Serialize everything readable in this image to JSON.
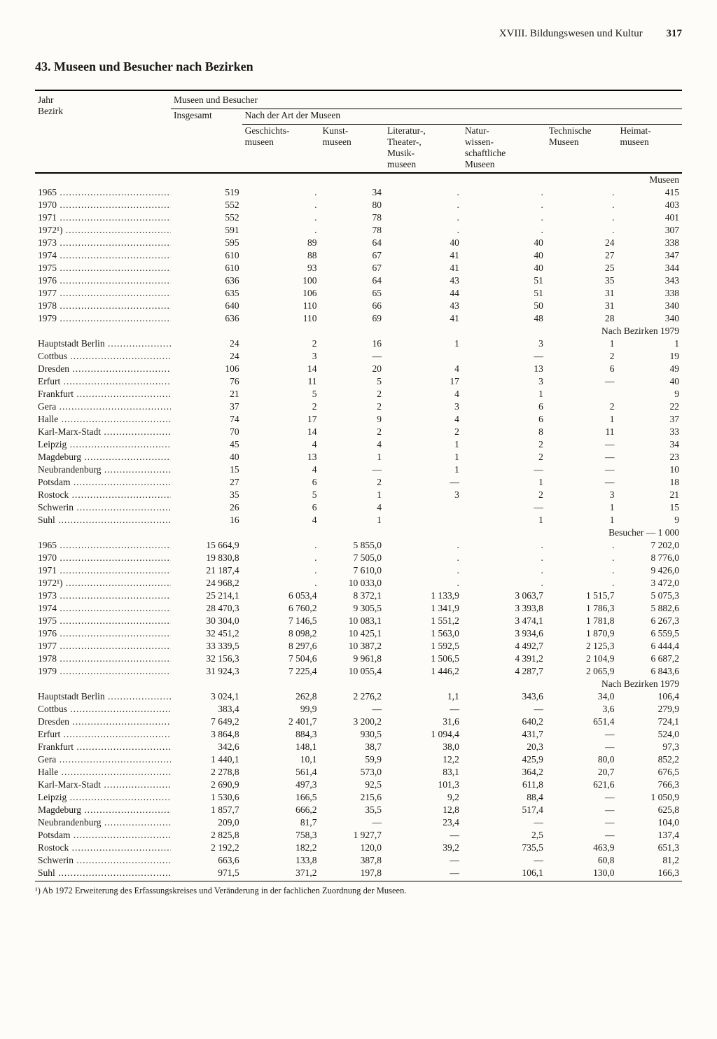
{
  "header": {
    "chapter": "XVIII. Bildungswesen und Kultur",
    "page": "317"
  },
  "title": "43. Museen und Besucher nach Bezirken",
  "col_left": {
    "l1": "Jahr",
    "l2": "Bezirk"
  },
  "col_group": "Museen und Besucher",
  "col_total": "Insgesamt",
  "col_sub": "Nach der Art der Museen",
  "cols": {
    "c1": "Geschichts-\nmuseen",
    "c2": "Kunst-\nmuseen",
    "c3": "Literatur-,\nTheater-,\nMusik-\nmuseen",
    "c4": "Natur-\nwissen-\nschaftliche\nMuseen",
    "c5": "Technische\nMuseen",
    "c6": "Heimat-\nmuseen"
  },
  "sections": {
    "s1": "Museen",
    "s2": "Nach Bezirken 1979",
    "s3": "Besucher — 1 000",
    "s4": "Nach Bezirken 1979"
  },
  "museen_years": [
    {
      "y": "1965",
      "t": "519",
      "c1": ".",
      "c2": "34",
      "c3": ".",
      "c4": ".",
      "c5": ".",
      "c6": "415"
    },
    {
      "y": "1970",
      "t": "552",
      "c1": ".",
      "c2": "80",
      "c3": ".",
      "c4": ".",
      "c5": ".",
      "c6": "403"
    },
    {
      "y": "1971",
      "t": "552",
      "c1": ".",
      "c2": "78",
      "c3": ".",
      "c4": ".",
      "c5": ".",
      "c6": "401"
    },
    {
      "y": "1972¹)",
      "t": "591",
      "c1": ".",
      "c2": "78",
      "c3": ".",
      "c4": ".",
      "c5": ".",
      "c6": "307"
    },
    {
      "y": "1973",
      "t": "595",
      "c1": "89",
      "c2": "64",
      "c3": "40",
      "c4": "40",
      "c5": "24",
      "c6": "338"
    },
    {
      "y": "1974",
      "t": "610",
      "c1": "88",
      "c2": "67",
      "c3": "41",
      "c4": "40",
      "c5": "27",
      "c6": "347"
    },
    {
      "y": "1975",
      "t": "610",
      "c1": "93",
      "c2": "67",
      "c3": "41",
      "c4": "40",
      "c5": "25",
      "c6": "344"
    },
    {
      "y": "1976",
      "t": "636",
      "c1": "100",
      "c2": "64",
      "c3": "43",
      "c4": "51",
      "c5": "35",
      "c6": "343"
    },
    {
      "y": "1977",
      "t": "635",
      "c1": "106",
      "c2": "65",
      "c3": "44",
      "c4": "51",
      "c5": "31",
      "c6": "338"
    },
    {
      "y": "1978",
      "t": "640",
      "c1": "110",
      "c2": "66",
      "c3": "43",
      "c4": "50",
      "c5": "31",
      "c6": "340"
    },
    {
      "y": "1979",
      "t": "636",
      "c1": "110",
      "c2": "69",
      "c3": "41",
      "c4": "48",
      "c5": "28",
      "c6": "340"
    }
  ],
  "museen_bezirke": [
    {
      "y": "Hauptstadt Berlin",
      "t": "24",
      "c1": "2",
      "c2": "16",
      "c3": "1",
      "c4": "3",
      "c5": "1",
      "c6": "1"
    },
    {
      "y": "Cottbus",
      "t": "24",
      "c1": "3",
      "c2": "—",
      "c3": "",
      "c4": "—",
      "c5": "2",
      "c6": "19"
    },
    {
      "y": "Dresden",
      "t": "106",
      "c1": "14",
      "c2": "20",
      "c3": "4",
      "c4": "13",
      "c5": "6",
      "c6": "49"
    },
    {
      "y": "Erfurt",
      "t": "76",
      "c1": "11",
      "c2": "5",
      "c3": "17",
      "c4": "3",
      "c5": "—",
      "c6": "40"
    },
    {
      "y": "Frankfurt",
      "t": "21",
      "c1": "5",
      "c2": "2",
      "c3": "4",
      "c4": "1",
      "c5": "",
      "c6": "9"
    },
    {
      "y": "Gera",
      "t": "37",
      "c1": "2",
      "c2": "2",
      "c3": "3",
      "c4": "6",
      "c5": "2",
      "c6": "22"
    },
    {
      "y": "Halle",
      "t": "74",
      "c1": "17",
      "c2": "9",
      "c3": "4",
      "c4": "6",
      "c5": "1",
      "c6": "37"
    },
    {
      "y": "Karl-Marx-Stadt",
      "t": "70",
      "c1": "14",
      "c2": "2",
      "c3": "2",
      "c4": "8",
      "c5": "11",
      "c6": "33"
    },
    {
      "y": "Leipzig",
      "t": "45",
      "c1": "4",
      "c2": "4",
      "c3": "1",
      "c4": "2",
      "c5": "—",
      "c6": "34"
    },
    {
      "y": "Magdeburg",
      "t": "40",
      "c1": "13",
      "c2": "1",
      "c3": "1",
      "c4": "2",
      "c5": "—",
      "c6": "23"
    },
    {
      "y": "Neubrandenburg",
      "t": "15",
      "c1": "4",
      "c2": "—",
      "c3": "1",
      "c4": "—",
      "c5": "—",
      "c6": "10"
    },
    {
      "y": "Potsdam",
      "t": "27",
      "c1": "6",
      "c2": "2",
      "c3": "—",
      "c4": "1",
      "c5": "—",
      "c6": "18"
    },
    {
      "y": "Rostock",
      "t": "35",
      "c1": "5",
      "c2": "1",
      "c3": "3",
      "c4": "2",
      "c5": "3",
      "c6": "21"
    },
    {
      "y": "Schwerin",
      "t": "26",
      "c1": "6",
      "c2": "4",
      "c3": "",
      "c4": "—",
      "c5": "1",
      "c6": "15"
    },
    {
      "y": "Suhl",
      "t": "16",
      "c1": "4",
      "c2": "1",
      "c3": "",
      "c4": "1",
      "c5": "1",
      "c6": "9"
    }
  ],
  "besucher_years": [
    {
      "y": "1965",
      "t": "15 664,9",
      "c1": ".",
      "c2": "5 855,0",
      "c3": ".",
      "c4": ".",
      "c5": ".",
      "c6": "7 202,0"
    },
    {
      "y": "1970",
      "t": "19 830,8",
      "c1": ".",
      "c2": "7 505,0",
      "c3": ".",
      "c4": ".",
      "c5": ".",
      "c6": "8 776,0"
    },
    {
      "y": "1971",
      "t": "21 187,4",
      "c1": ".",
      "c2": "7 610,0",
      "c3": ".",
      "c4": ".",
      "c5": ".",
      "c6": "9 426,0"
    },
    {
      "y": "1972¹)",
      "t": "24 968,2",
      "c1": ".",
      "c2": "10 033,0",
      "c3": ".",
      "c4": ".",
      "c5": ".",
      "c6": "3 472,0"
    },
    {
      "y": "1973",
      "t": "25 214,1",
      "c1": "6 053,4",
      "c2": "8 372,1",
      "c3": "1 133,9",
      "c4": "3 063,7",
      "c5": "1 515,7",
      "c6": "5 075,3"
    },
    {
      "y": "1974",
      "t": "28 470,3",
      "c1": "6 760,2",
      "c2": "9 305,5",
      "c3": "1 341,9",
      "c4": "3 393,8",
      "c5": "1 786,3",
      "c6": "5 882,6"
    },
    {
      "y": "1975",
      "t": "30 304,0",
      "c1": "7 146,5",
      "c2": "10 083,1",
      "c3": "1 551,2",
      "c4": "3 474,1",
      "c5": "1 781,8",
      "c6": "6 267,3"
    },
    {
      "y": "1976",
      "t": "32 451,2",
      "c1": "8 098,2",
      "c2": "10 425,1",
      "c3": "1 563,0",
      "c4": "3 934,6",
      "c5": "1 870,9",
      "c6": "6 559,5"
    },
    {
      "y": "1977",
      "t": "33 339,5",
      "c1": "8 297,6",
      "c2": "10 387,2",
      "c3": "1 592,5",
      "c4": "4 492,7",
      "c5": "2 125,3",
      "c6": "6 444,4"
    },
    {
      "y": "1978",
      "t": "32 156,3",
      "c1": "7 504,6",
      "c2": "9 961,8",
      "c3": "1 506,5",
      "c4": "4 391,2",
      "c5": "2 104,9",
      "c6": "6 687,2"
    },
    {
      "y": "1979",
      "t": "31 924,3",
      "c1": "7 225,4",
      "c2": "10 055,4",
      "c3": "1 446,2",
      "c4": "4 287,7",
      "c5": "2 065,9",
      "c6": "6 843,6"
    }
  ],
  "besucher_bezirke": [
    {
      "y": "Hauptstadt Berlin",
      "t": "3 024,1",
      "c1": "262,8",
      "c2": "2 276,2",
      "c3": "1,1",
      "c4": "343,6",
      "c5": "34,0",
      "c6": "106,4"
    },
    {
      "y": "Cottbus",
      "t": "383,4",
      "c1": "99,9",
      "c2": "—",
      "c3": "—",
      "c4": "—",
      "c5": "3,6",
      "c6": "279,9"
    },
    {
      "y": "Dresden",
      "t": "7 649,2",
      "c1": "2 401,7",
      "c2": "3 200,2",
      "c3": "31,6",
      "c4": "640,2",
      "c5": "651,4",
      "c6": "724,1"
    },
    {
      "y": "Erfurt",
      "t": "3 864,8",
      "c1": "884,3",
      "c2": "930,5",
      "c3": "1 094,4",
      "c4": "431,7",
      "c5": "—",
      "c6": "524,0"
    },
    {
      "y": "Frankfurt",
      "t": "342,6",
      "c1": "148,1",
      "c2": "38,7",
      "c3": "38,0",
      "c4": "20,3",
      "c5": "—",
      "c6": "97,3"
    },
    {
      "y": "Gera",
      "t": "1 440,1",
      "c1": "10,1",
      "c2": "59,9",
      "c3": "12,2",
      "c4": "425,9",
      "c5": "80,0",
      "c6": "852,2"
    },
    {
      "y": "Halle",
      "t": "2 278,8",
      "c1": "561,4",
      "c2": "573,0",
      "c3": "83,1",
      "c4": "364,2",
      "c5": "20,7",
      "c6": "676,5"
    },
    {
      "y": "Karl-Marx-Stadt",
      "t": "2 690,9",
      "c1": "497,3",
      "c2": "92,5",
      "c3": "101,3",
      "c4": "611,8",
      "c5": "621,6",
      "c6": "766,3"
    },
    {
      "y": "Leipzig",
      "t": "1 530,6",
      "c1": "166,5",
      "c2": "215,6",
      "c3": "9,2",
      "c4": "88,4",
      "c5": "—",
      "c6": "1 050,9"
    },
    {
      "y": "Magdeburg",
      "t": "1 857,7",
      "c1": "666,2",
      "c2": "35,5",
      "c3": "12,8",
      "c4": "517,4",
      "c5": "—",
      "c6": "625,8"
    },
    {
      "y": "Neubrandenburg",
      "t": "209,0",
      "c1": "81,7",
      "c2": "—",
      "c3": "23,4",
      "c4": "—",
      "c5": "—",
      "c6": "104,0"
    },
    {
      "y": "Potsdam",
      "t": "2 825,8",
      "c1": "758,3",
      "c2": "1 927,7",
      "c3": "—",
      "c4": "2,5",
      "c5": "—",
      "c6": "137,4"
    },
    {
      "y": "Rostock",
      "t": "2 192,2",
      "c1": "182,2",
      "c2": "120,0",
      "c3": "39,2",
      "c4": "735,5",
      "c5": "463,9",
      "c6": "651,3"
    },
    {
      "y": "Schwerin",
      "t": "663,6",
      "c1": "133,8",
      "c2": "387,8",
      "c3": "—",
      "c4": "—",
      "c5": "60,8",
      "c6": "81,2"
    },
    {
      "y": "Suhl",
      "t": "971,5",
      "c1": "371,2",
      "c2": "197,8",
      "c3": "—",
      "c4": "106,1",
      "c5": "130,0",
      "c6": "166,3"
    }
  ],
  "footnote": "¹) Ab 1972 Erweiterung des Erfassungskreises und Veränderung in der fachlichen Zuordnung der Museen."
}
